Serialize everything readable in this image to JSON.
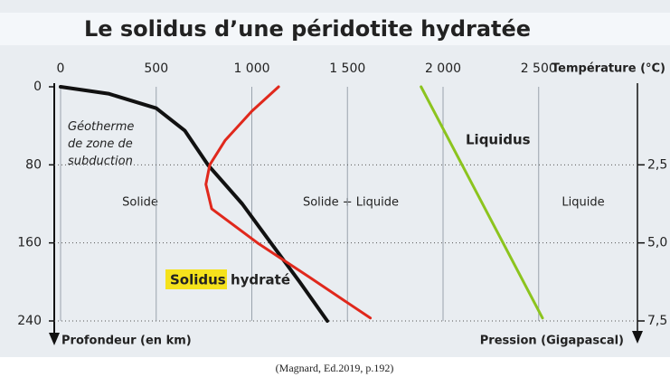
{
  "chart_data": {
    "type": "line",
    "title": "Le solidus d’une péridotite hydratée",
    "x_label": "Température (°C)",
    "y_label": "Profondeur (en km)",
    "y2_label": "Pression (Gigapascal)",
    "xlim": [
      0,
      3000
    ],
    "xticks": [
      0,
      500,
      {
        "value": 1000,
        "label": "1 000"
      },
      {
        "value": 1500,
        "label": "1 500"
      },
      {
        "value": 2000,
        "label": "2 000"
      },
      {
        "value": 2500,
        "label": "2 500"
      }
    ],
    "ylim": [
      0,
      240
    ],
    "invert_y": true,
    "yticks": [
      0,
      80,
      160,
      240
    ],
    "y2lim": [
      0,
      7.5
    ],
    "y2ticks": [
      {
        "value": 2.5,
        "label": "2,5"
      },
      {
        "value": 5.0,
        "label": "5,0"
      },
      {
        "value": 7.5,
        "label": "7,5"
      }
    ],
    "grid": true,
    "series": [
      {
        "name": "Géotherme de zone de subduction",
        "color": "#111111",
        "x": [
          0,
          250,
          500,
          650,
          770,
          950,
          1100,
          1250,
          1395
        ],
        "values": [
          0,
          7,
          22,
          45,
          80,
          120,
          160,
          200,
          240
        ]
      },
      {
        "name": "Solidus hydraté",
        "color": "#e0281c",
        "x": [
          1140,
          1000,
          860,
          780,
          760,
          790,
          1030,
          1300,
          1620
        ],
        "values": [
          0,
          25,
          55,
          80,
          100,
          125,
          160,
          195,
          237
        ]
      },
      {
        "name": "Liquidus",
        "color": "#8cc41e",
        "x": [
          1885,
          2520
        ],
        "values": [
          0,
          237
        ]
      }
    ],
    "region_labels": [
      "Solide",
      "Solide + Liquide",
      "Liquide"
    ],
    "source": "(Magnard, Ed.2019, p.192)"
  }
}
